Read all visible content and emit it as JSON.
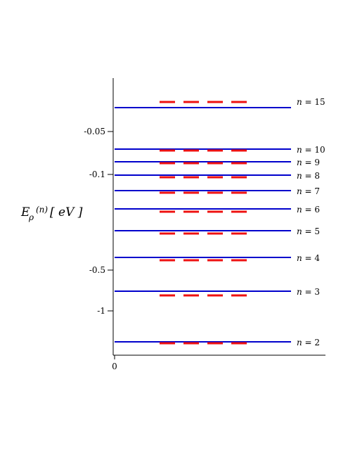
{
  "chart_data": {
    "type": "line",
    "xlabel": "",
    "x_ticks": [
      "0"
    ],
    "ylabel": {
      "symbol": "E",
      "subscript": "ρ",
      "superscript": "(n)",
      "unit": "[ eV ]"
    },
    "y_ticks": [
      {
        "value": -0.05,
        "label": "-0.05"
      },
      {
        "value": -0.1,
        "label": "-0.1"
      },
      {
        "value": -0.5,
        "label": "-0.5"
      },
      {
        "value": -1,
        "label": "-1"
      }
    ],
    "y_scale": "nonlinear (compressed toward 0)",
    "grid": false,
    "series": [
      {
        "style": "solid",
        "color": "#0000cc"
      },
      {
        "style": "dashed",
        "color": "#ee1111"
      }
    ],
    "levels": [
      {
        "n": 2,
        "label_var": "n",
        "label_eq": " = 2",
        "solid": -3.4,
        "dashed": -3.42
      },
      {
        "n": 3,
        "label_var": "n",
        "label_eq": " = 3",
        "solid": -0.756,
        "dashed": -0.93
      },
      {
        "n": 4,
        "label_var": "n",
        "label_eq": " = 4",
        "solid": -0.425,
        "dashed": -0.46
      },
      {
        "n": 5,
        "label_var": "n",
        "label_eq": " = 5",
        "solid": -0.272,
        "dashed": -0.285
      },
      {
        "n": 6,
        "label_var": "n",
        "label_eq": " = 6",
        "solid": -0.189,
        "dashed": -0.197
      },
      {
        "n": 7,
        "label_var": "n",
        "label_eq": " = 7",
        "solid": -0.139,
        "dashed": -0.144
      },
      {
        "n": 8,
        "label_var": "n",
        "label_eq": " = 8",
        "solid": -0.106,
        "dashed": -0.11
      },
      {
        "n": 9,
        "label_var": "n",
        "label_eq": " = 9",
        "solid": -0.084,
        "dashed": -0.088
      },
      {
        "n": 10,
        "label_var": "n",
        "label_eq": " = 10",
        "solid": -0.068,
        "dashed": -0.071
      },
      {
        "n": 15,
        "label_var": "n",
        "label_eq": " = 15",
        "solid": -0.03,
        "dashed": -0.026
      }
    ]
  }
}
